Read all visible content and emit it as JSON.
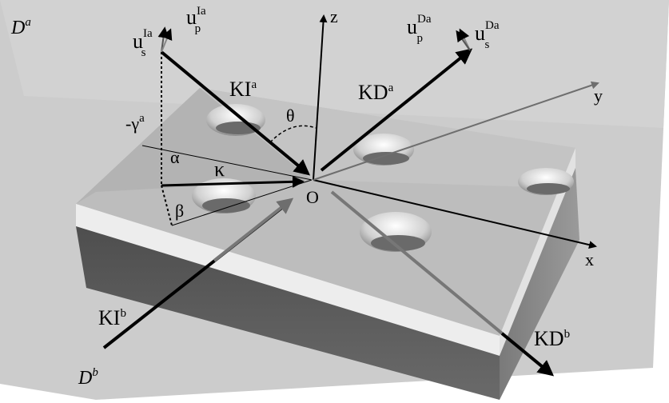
{
  "planes": {
    "upper": {
      "letter": "D",
      "sup": "a"
    },
    "lower": {
      "letter": "D",
      "sup": "b"
    }
  },
  "axes": {
    "x": "x",
    "y": "y",
    "z": "z",
    "origin": "O"
  },
  "vectors": {
    "ki_a": {
      "base": "KI",
      "sup": "a"
    },
    "kd_a": {
      "base": "KD",
      "sup": "a"
    },
    "ki_b": {
      "base": "KI",
      "sup": "b"
    },
    "kd_b": {
      "base": "KD",
      "sup": "b"
    },
    "kappa": "κ"
  },
  "polarization": {
    "us_ia": {
      "base": "u",
      "sub": "s",
      "sup": "Ia"
    },
    "up_ia": {
      "base": "u",
      "sub": "p",
      "sup": "Ia"
    },
    "up_da": {
      "base": "u",
      "sub": "p",
      "sup": "Da"
    },
    "us_da": {
      "base": "u",
      "sub": "s",
      "sup": "Da"
    }
  },
  "angles": {
    "theta": "θ",
    "alpha": "α",
    "beta": "β",
    "gamma": {
      "base": "-γ",
      "sup": "a"
    }
  },
  "colors": {
    "background_plane": "#cccccc",
    "block_top": "#b8b8b8",
    "block_front_light": "#eeeeee",
    "block_front_dark": "#5e5e5e",
    "block_side": "#8f8f8f",
    "arrow_dark": "#000000",
    "arrow_gray": "#6e6e6e"
  }
}
